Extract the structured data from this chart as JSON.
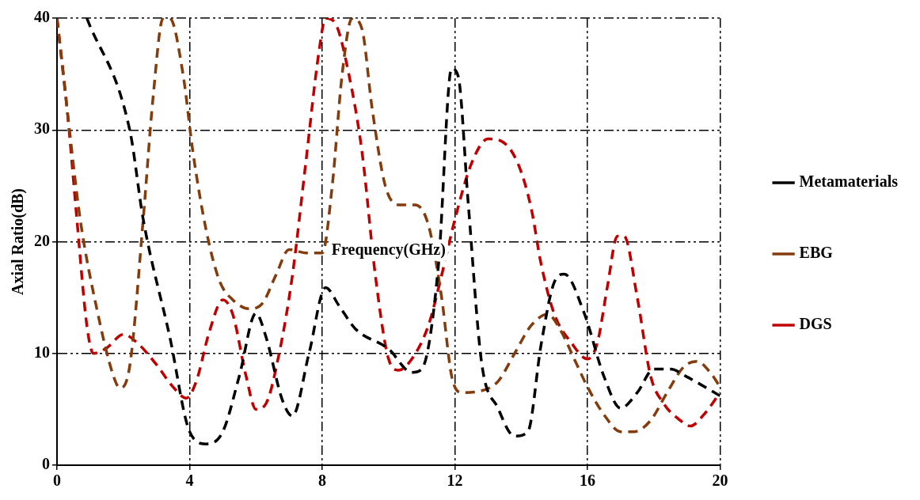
{
  "chart_data": {
    "type": "line",
    "xlabel": "Frequency(GHz)",
    "ylabel": "Axial Ratio(dB)",
    "xlim": [
      0,
      20
    ],
    "xticks": [
      0,
      4,
      8,
      12,
      16,
      20
    ],
    "ylim": [
      0,
      40
    ],
    "yticks": [
      0,
      10,
      20,
      30,
      40
    ],
    "grid": true,
    "legend": "right",
    "marker": "none",
    "line_style": "dashed",
    "series": [
      {
        "name": "Metamaterials",
        "color": "#000000",
        "x": [
          0.9,
          2.2,
          2.6,
          3.4,
          4,
          4.5,
          5,
          5.5,
          6,
          6.3,
          6.8,
          7.1,
          7.6,
          8.1,
          8.5,
          9,
          10,
          10.7,
          11,
          11.5,
          11.9,
          12.1,
          12.4,
          12.8,
          13.3,
          13.8,
          14.2,
          14.6,
          15,
          15.3,
          15.9,
          16.5,
          17,
          17.5,
          18,
          18.5,
          19,
          20
        ],
        "values": [
          40,
          29.9,
          22,
          11.5,
          3,
          1.9,
          3,
          8,
          13.6,
          11.5,
          5.8,
          4.4,
          10,
          15.9,
          14.3,
          12.2,
          10.4,
          8.3,
          8.6,
          17.8,
          35.5,
          34.8,
          23.5,
          9.3,
          5.1,
          2.6,
          3,
          10.8,
          16.4,
          17.1,
          13.6,
          7.9,
          5.1,
          6.5,
          8.6,
          8.6,
          7.9,
          6.2
        ]
      },
      {
        "name": "EBG",
        "color": "#843c0c",
        "x": [
          0,
          0.3,
          0.7,
          1.2,
          1.7,
          1.9,
          2.2,
          2.6,
          2.9,
          3.2,
          3.4,
          3.8,
          4.1,
          4.5,
          4.9,
          5.3,
          5.8,
          6.2,
          6.6,
          7,
          7.5,
          8,
          8.3,
          8.6,
          8.9,
          9.2,
          9.5,
          9.9,
          10.3,
          10.8,
          11.2,
          11.6,
          11.9,
          12.2,
          12.7,
          13.3,
          13.8,
          14.3,
          14.8,
          15.2,
          15.6,
          16,
          16.5,
          17,
          17.4,
          17.9,
          18.4,
          18.9,
          19.3,
          19.7,
          20
        ],
        "values": [
          40,
          32,
          22,
          14,
          8,
          6.9,
          9,
          22,
          33,
          40,
          40,
          35,
          28,
          21,
          16.5,
          14.8,
          14,
          14.5,
          17,
          19.3,
          19,
          19,
          25,
          35,
          40,
          39,
          32,
          25,
          23.3,
          23.3,
          21.5,
          15,
          8,
          6.5,
          6.6,
          7.5,
          10,
          12.5,
          13.5,
          12,
          9.5,
          7,
          4.5,
          3,
          3,
          4,
          6.5,
          8.8,
          9.3,
          8.3,
          7
        ]
      },
      {
        "name": "DGS",
        "color": "#c00000",
        "x": [
          0,
          0.3,
          0.6,
          0.9,
          1.1,
          1.5,
          2,
          2.4,
          3,
          3.5,
          3.9,
          4.2,
          4.6,
          5,
          5.3,
          5.7,
          6,
          6.3,
          6.7,
          7.1,
          7.5,
          7.9,
          8.1,
          8.4,
          8.8,
          9.2,
          9.6,
          10,
          10.3,
          10.7,
          11.2,
          11.6,
          12,
          12.5,
          13,
          13.4,
          13.9,
          14.3,
          14.6,
          15,
          15.5,
          16,
          16.3,
          16.6,
          16.9,
          17.1,
          17.5,
          17.9,
          18.3,
          18.8,
          19.1,
          19.5,
          20
        ],
        "values": [
          40,
          32,
          22,
          12.5,
          10,
          10.5,
          11.7,
          11,
          9,
          7,
          6,
          7.5,
          12,
          14.8,
          13.5,
          8,
          5,
          5.5,
          10,
          17,
          27,
          37,
          40,
          39.5,
          35,
          28,
          17,
          9.5,
          8.5,
          9.5,
          12.5,
          17,
          22,
          27,
          29.2,
          29,
          27,
          23,
          18,
          13.5,
          11,
          9.5,
          11,
          16,
          20.5,
          20.5,
          15,
          8,
          5.5,
          4,
          3.5,
          4.5,
          6.5
        ]
      }
    ]
  }
}
